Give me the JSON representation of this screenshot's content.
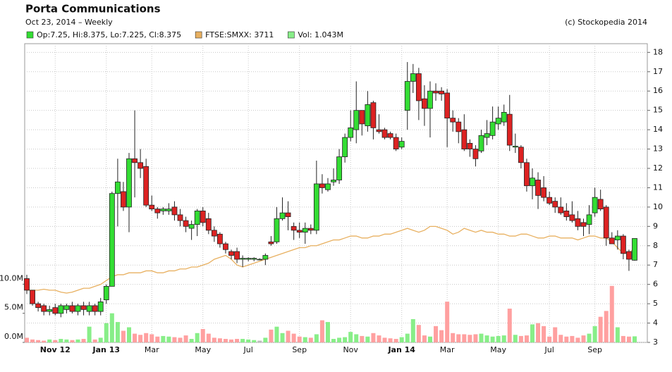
{
  "chart_data": {
    "type": "candlestick",
    "title": "Porta Communications",
    "subtitle": "Oct 23, 2014 – Weekly",
    "credit": "(c) Stockopedia 2014",
    "categories": [
      null,
      null,
      null,
      null,
      null,
      "Nov 12",
      null,
      null,
      null,
      null,
      null,
      null,
      null,
      null,
      "Jan 13",
      null,
      null,
      null,
      null,
      null,
      null,
      null,
      "Mar",
      null,
      null,
      null,
      null,
      null,
      null,
      null,
      null,
      "May",
      null,
      null,
      null,
      null,
      null,
      null,
      null,
      "Jul",
      null,
      null,
      null,
      null,
      null,
      null,
      null,
      null,
      "Sep",
      null,
      null,
      null,
      null,
      null,
      null,
      null,
      null,
      "Nov",
      null,
      null,
      null,
      null,
      null,
      null,
      null,
      null,
      "Jan 14",
      null,
      null,
      null,
      null,
      null,
      null,
      null,
      "Mar",
      null,
      null,
      null,
      null,
      null,
      null,
      null,
      null,
      "May",
      null,
      null,
      null,
      null,
      null,
      null,
      null,
      null,
      "Jul",
      null,
      null,
      null,
      null,
      null,
      null,
      null,
      "Sep",
      null,
      null,
      null,
      null,
      null,
      null,
      null
    ],
    "series": [
      {
        "name": "Op:7.25, Hi:8.375, Lo:7.225, Cl:8.375",
        "color": "#33dd33",
        "down_color": "#dd2222",
        "open": [
          6.3,
          5.7,
          5.0,
          4.9,
          4.6,
          4.8,
          4.5,
          4.7,
          4.9,
          4.6,
          4.9,
          4.6,
          4.9,
          4.6,
          5.2,
          5.9,
          10.7,
          10.8,
          10.0,
          12.5,
          12.3,
          12.1,
          10.1,
          9.9,
          9.8,
          9.8,
          10.0,
          9.6,
          9.3,
          8.9,
          9.1,
          9.8,
          9.4,
          8.8,
          8.6,
          8.1,
          7.7,
          7.7,
          7.3,
          7.3,
          7.3,
          7.3,
          7.3,
          8.2,
          8.2,
          9.4,
          9.7,
          9.0,
          8.8,
          8.7,
          8.9,
          8.8,
          11.2,
          10.9,
          11.3,
          11.4,
          12.6,
          13.6,
          14.0,
          15.0,
          14.2,
          15.4,
          14.0,
          14.0,
          13.8,
          13.6,
          13.1,
          15.0,
          16.5,
          16.9,
          15.6,
          15.1,
          16.0,
          16.0,
          15.9,
          14.6,
          14.4,
          14.0,
          13.3,
          13.0,
          12.9,
          13.6,
          13.7,
          14.3,
          14.4,
          14.8,
          13.1,
          13.1,
          12.3,
          11.1,
          11.4,
          11.0,
          10.5,
          10.3,
          10.0,
          9.8,
          9.6,
          9.4,
          9.2,
          9.1,
          9.7,
          10.4,
          10.0,
          8.4,
          8.3,
          8.5,
          7.7,
          7.25
        ],
        "high": [
          6.5,
          5.7,
          5.1,
          5.0,
          4.9,
          5.0,
          5.0,
          5.0,
          5.1,
          5.0,
          5.1,
          5.1,
          5.0,
          5.3,
          6.0,
          10.8,
          12.5,
          11.3,
          12.8,
          15.0,
          13.0,
          12.5,
          10.6,
          10.0,
          10.0,
          10.2,
          10.3,
          9.9,
          9.5,
          9.3,
          9.9,
          10.0,
          9.7,
          9.0,
          8.7,
          8.2,
          7.8,
          7.9,
          7.5,
          7.4,
          7.4,
          7.35,
          7.6,
          8.5,
          10.0,
          10.5,
          10.3,
          9.2,
          9.2,
          9.2,
          9.1,
          12.4,
          11.7,
          11.5,
          12.0,
          13.0,
          13.8,
          15.0,
          16.5,
          15.0,
          16.0,
          15.5,
          14.8,
          14.1,
          13.9,
          13.8,
          13.6,
          17.5,
          17.4,
          17.2,
          16.3,
          16.5,
          16.4,
          16.2,
          16.1,
          15.0,
          14.6,
          14.8,
          13.5,
          13.2,
          14.0,
          14.5,
          15.2,
          15.2,
          15.3,
          15.8,
          13.8,
          13.2,
          12.5,
          12.0,
          11.8,
          11.6,
          10.8,
          10.5,
          10.5,
          10.2,
          10.3,
          9.8,
          9.4,
          10.1,
          11.0,
          10.9,
          10.1,
          8.7,
          8.8,
          8.6,
          7.8,
          8.375
        ],
        "low": [
          5.5,
          4.9,
          4.6,
          4.4,
          4.4,
          4.4,
          4.3,
          4.5,
          4.5,
          4.4,
          4.4,
          4.4,
          4.4,
          4.4,
          5.0,
          5.9,
          9.0,
          9.8,
          8.7,
          10.5,
          11.5,
          10.0,
          9.8,
          9.4,
          9.6,
          9.6,
          9.3,
          9.0,
          8.7,
          8.3,
          8.5,
          9.0,
          8.6,
          8.2,
          7.9,
          7.6,
          7.3,
          7.1,
          6.9,
          7.2,
          7.2,
          7.25,
          7.0,
          8.0,
          8.1,
          9.3,
          8.8,
          8.3,
          8.4,
          8.1,
          8.6,
          8.6,
          10.7,
          10.8,
          11.1,
          11.2,
          12.3,
          13.4,
          13.3,
          13.7,
          13.9,
          13.5,
          13.8,
          13.5,
          13.5,
          12.9,
          13.0,
          14.0,
          15.9,
          14.5,
          14.2,
          13.6,
          15.5,
          15.5,
          13.1,
          13.9,
          13.3,
          12.9,
          12.6,
          12.1,
          12.8,
          13.2,
          13.5,
          14.0,
          14.2,
          12.9,
          12.8,
          12.0,
          10.8,
          10.4,
          9.9,
          10.3,
          10.1,
          9.7,
          9.6,
          9.3,
          9.2,
          8.8,
          8.5,
          8.6,
          9.5,
          9.8,
          8.0,
          8.1,
          7.8,
          7.3,
          6.7,
          7.225
        ],
        "close": [
          5.7,
          5.0,
          4.8,
          4.6,
          4.7,
          4.5,
          4.9,
          4.9,
          4.6,
          4.9,
          4.7,
          4.9,
          4.6,
          5.1,
          5.9,
          10.7,
          11.3,
          10.0,
          12.5,
          12.3,
          12.0,
          10.1,
          9.9,
          9.7,
          9.9,
          9.9,
          9.6,
          9.3,
          9.0,
          9.1,
          9.8,
          9.2,
          8.8,
          8.5,
          8.1,
          7.8,
          7.5,
          7.3,
          7.35,
          7.35,
          7.35,
          7.3,
          7.5,
          8.1,
          9.4,
          9.7,
          9.5,
          8.8,
          8.7,
          8.9,
          8.8,
          11.2,
          11.0,
          11.2,
          11.4,
          12.6,
          13.6,
          14.1,
          15.0,
          14.3,
          15.3,
          14.1,
          13.9,
          13.6,
          13.6,
          13.0,
          13.4,
          16.5,
          16.9,
          15.5,
          15.1,
          16.0,
          15.9,
          15.85,
          14.6,
          14.4,
          13.9,
          13.0,
          13.0,
          12.5,
          13.7,
          13.8,
          14.4,
          14.6,
          14.9,
          13.2,
          13.15,
          12.3,
          11.1,
          11.5,
          10.6,
          10.5,
          10.2,
          10.0,
          9.7,
          9.5,
          9.3,
          9.0,
          9.0,
          9.6,
          10.5,
          9.9,
          8.4,
          8.1,
          8.5,
          7.6,
          7.3,
          8.375
        ]
      },
      {
        "name": "FTSE:SMXX: 3711",
        "color": "#e8b060",
        "values": [
          5.7,
          5.7,
          5.7,
          5.75,
          5.7,
          5.7,
          5.6,
          5.55,
          5.6,
          5.7,
          5.8,
          5.8,
          5.9,
          6.0,
          6.2,
          6.4,
          6.5,
          6.5,
          6.6,
          6.6,
          6.6,
          6.7,
          6.7,
          6.6,
          6.6,
          6.7,
          6.7,
          6.8,
          6.8,
          6.9,
          6.9,
          7.0,
          7.1,
          7.3,
          7.4,
          7.5,
          7.3,
          7.0,
          6.9,
          7.0,
          7.1,
          7.2,
          7.3,
          7.4,
          7.5,
          7.6,
          7.7,
          7.8,
          7.9,
          7.9,
          8.0,
          8.0,
          8.1,
          8.2,
          8.3,
          8.3,
          8.4,
          8.5,
          8.5,
          8.4,
          8.4,
          8.5,
          8.5,
          8.6,
          8.6,
          8.7,
          8.8,
          8.9,
          8.8,
          8.7,
          8.8,
          9.0,
          9.0,
          8.9,
          8.8,
          8.6,
          8.7,
          8.9,
          8.8,
          8.7,
          8.8,
          8.7,
          8.7,
          8.6,
          8.6,
          8.5,
          8.5,
          8.6,
          8.6,
          8.5,
          8.4,
          8.4,
          8.5,
          8.5,
          8.4,
          8.4,
          8.4,
          8.3,
          8.4,
          8.5,
          8.5,
          8.4,
          8.4,
          8.2,
          7.9,
          7.6,
          7.6,
          7.9
        ]
      },
      {
        "name": "Vol: 1.043M",
        "color": "#88ee88",
        "down_color": "#ffa0a0",
        "flat_color": "#bbbbbb",
        "axis": "y2",
        "values": [
          0.8,
          0.5,
          0.4,
          0.3,
          0.5,
          0.4,
          0.6,
          0.5,
          0.4,
          0.5,
          0.6,
          2.7,
          0.5,
          0.8,
          3.3,
          5.0,
          3.5,
          2.0,
          2.6,
          1.5,
          1.3,
          1.6,
          1.4,
          1.0,
          1.1,
          1.0,
          0.9,
          0.8,
          1.2,
          0.6,
          1.6,
          2.3,
          1.5,
          0.8,
          0.7,
          0.6,
          0.5,
          0.6,
          0.6,
          0.5,
          0.4,
          0.3,
          0.8,
          2.2,
          2.7,
          1.6,
          2.0,
          1.5,
          1.0,
          0.9,
          0.8,
          1.4,
          3.8,
          3.5,
          0.6,
          0.8,
          0.9,
          1.8,
          1.4,
          1.1,
          1.0,
          1.6,
          1.2,
          0.8,
          0.7,
          0.6,
          0.9,
          1.5,
          4.0,
          3.0,
          1.2,
          1.0,
          2.8,
          2.1,
          7.0,
          1.6,
          1.4,
          1.4,
          1.3,
          1.4,
          1.5,
          1.2,
          1.0,
          1.1,
          1.2,
          5.8,
          1.3,
          1.1,
          1.2,
          3.1,
          3.3,
          2.8,
          1.0,
          2.6,
          1.3,
          1.0,
          1.1,
          0.8,
          1.2,
          1.5,
          2.8,
          4.4,
          5.4,
          9.7,
          2.6,
          1.1,
          1.0,
          1.043
        ]
      }
    ],
    "ylim": [
      3,
      18.45
    ],
    "yticks": [
      3,
      4,
      5,
      6,
      7,
      8,
      9,
      10,
      11,
      12,
      13,
      14,
      15,
      16,
      17,
      18
    ],
    "y2lim": [
      0,
      51.3
    ],
    "y2ticks": [
      {
        "value": 0,
        "label": "0.0M"
      },
      {
        "value": 5,
        "label": "5.0M"
      },
      {
        "value": 10,
        "label": "10.0M"
      }
    ],
    "grid": true
  }
}
